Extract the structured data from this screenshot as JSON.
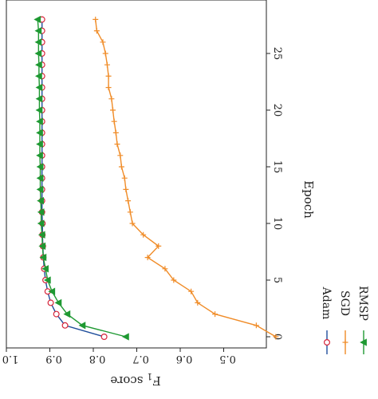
{
  "chart_data": {
    "type": "line",
    "orientation": "rotated-90-clockwise",
    "xlabel": "Epoch",
    "ylabel": "F1 score",
    "ylabel_main": "F",
    "ylabel_sub": "1",
    "ylabel_rest": " score",
    "xlim": [
      -0.5,
      29
    ],
    "ylim": [
      0.35,
      1.0
    ],
    "x_ticks": [
      "0",
      "5",
      "10",
      "15",
      "20",
      "25"
    ],
    "y_ticks": [
      "1.0",
      "0.9",
      "0.8",
      "0.7",
      "0.6",
      "0.5"
    ],
    "legend_position": "bottom-left",
    "grid": false,
    "series": [
      {
        "name": "Adam",
        "color": "#1f4e9c",
        "marker": "open-circle",
        "x": [
          0,
          1,
          2,
          3,
          4,
          5,
          6,
          7,
          8,
          9,
          10,
          11,
          12,
          13,
          14,
          15,
          16,
          17,
          18,
          19,
          20,
          21,
          22,
          23,
          24,
          25,
          26,
          27,
          28
        ],
        "values": [
          0.775,
          0.865,
          0.885,
          0.898,
          0.905,
          0.91,
          0.913,
          0.915,
          0.916,
          0.917,
          0.917,
          0.918,
          0.918,
          0.918,
          0.918,
          0.918,
          0.918,
          0.918,
          0.918,
          0.918,
          0.918,
          0.918,
          0.918,
          0.918,
          0.918,
          0.918,
          0.918,
          0.918,
          0.918
        ]
      },
      {
        "name": "SGD",
        "color": "#f08c28",
        "marker": "plus",
        "x": [
          0,
          1,
          2,
          3,
          4,
          5,
          6,
          7,
          8,
          9,
          10,
          11,
          12,
          13,
          14,
          15,
          16,
          17,
          18,
          19,
          20,
          21,
          22,
          23,
          24,
          25,
          26,
          27,
          28
        ],
        "values": [
          0.38,
          0.425,
          0.52,
          0.56,
          0.575,
          0.615,
          0.635,
          0.675,
          0.65,
          0.685,
          0.71,
          0.715,
          0.72,
          0.725,
          0.728,
          0.735,
          0.738,
          0.745,
          0.748,
          0.752,
          0.755,
          0.758,
          0.765,
          0.765,
          0.768,
          0.772,
          0.778,
          0.792,
          0.795
        ]
      },
      {
        "name": "RMSP",
        "color": "#1e9932",
        "marker": "filled-triangle",
        "x": [
          0,
          1,
          2,
          3,
          4,
          5,
          6,
          7,
          8,
          9,
          10,
          11,
          12,
          13,
          14,
          15,
          16,
          17,
          18,
          19,
          20,
          21,
          22,
          23,
          24,
          25,
          26,
          27,
          28
        ],
        "values": [
          0.725,
          0.825,
          0.86,
          0.88,
          0.895,
          0.905,
          0.91,
          0.915,
          0.917,
          0.918,
          0.92,
          0.92,
          0.921,
          0.922,
          0.922,
          0.922,
          0.923,
          0.923,
          0.923,
          0.923,
          0.924,
          0.924,
          0.924,
          0.925,
          0.925,
          0.926,
          0.926,
          0.926,
          0.928
        ]
      }
    ]
  }
}
